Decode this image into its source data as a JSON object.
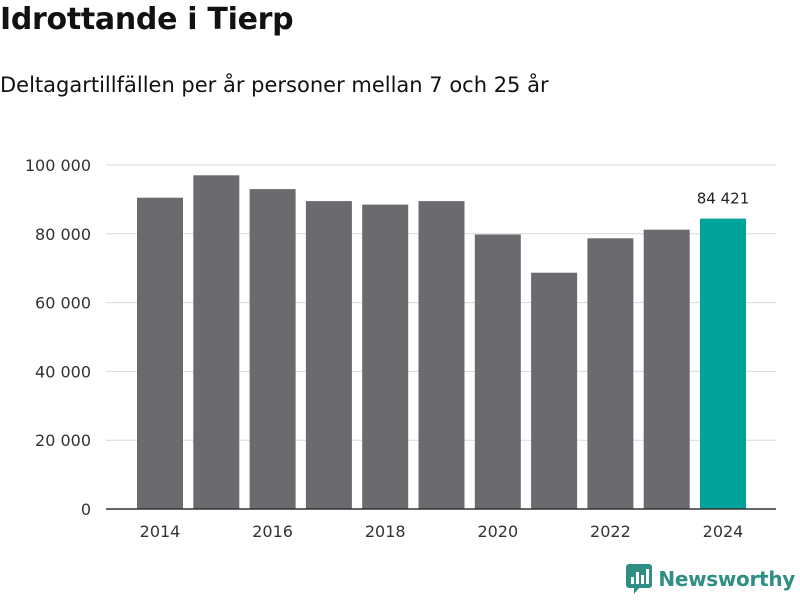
{
  "title": "Idrottande i Tierp",
  "subtitle": "Deltagartillfällen per år personer mellan 7 och 25 år",
  "brand": {
    "name": "Newsworthy",
    "icon": "newsworthy-logo-icon",
    "color": "#2f8f84"
  },
  "colors": {
    "bar": "#6b6a6f",
    "highlight": "#00a39a",
    "grid": "#d9d9d9",
    "axis": "#333333"
  },
  "chart_data": {
    "type": "bar",
    "title": "Idrottande i Tierp",
    "subtitle": "Deltagartillfällen per år personer mellan 7 och 25 år",
    "xlabel": "",
    "ylabel": "",
    "categories": [
      "2014",
      "2015",
      "2016",
      "2017",
      "2018",
      "2019",
      "2020",
      "2021",
      "2022",
      "2023",
      "2024"
    ],
    "values": [
      90500,
      97000,
      93000,
      89500,
      88500,
      89500,
      79800,
      68700,
      78700,
      81200,
      84421
    ],
    "highlight_index": 10,
    "data_labels": [
      {
        "index": 10,
        "text": "84 421"
      }
    ],
    "ylim": [
      0,
      100000
    ],
    "yticks": [
      0,
      20000,
      40000,
      60000,
      80000,
      100000
    ],
    "ytick_labels": [
      "0",
      "20 000",
      "40 000",
      "60 000",
      "80 000",
      "100 000"
    ],
    "xtick_labels": [
      "2014",
      "2016",
      "2018",
      "2020",
      "2022",
      "2024"
    ],
    "grid": true
  }
}
